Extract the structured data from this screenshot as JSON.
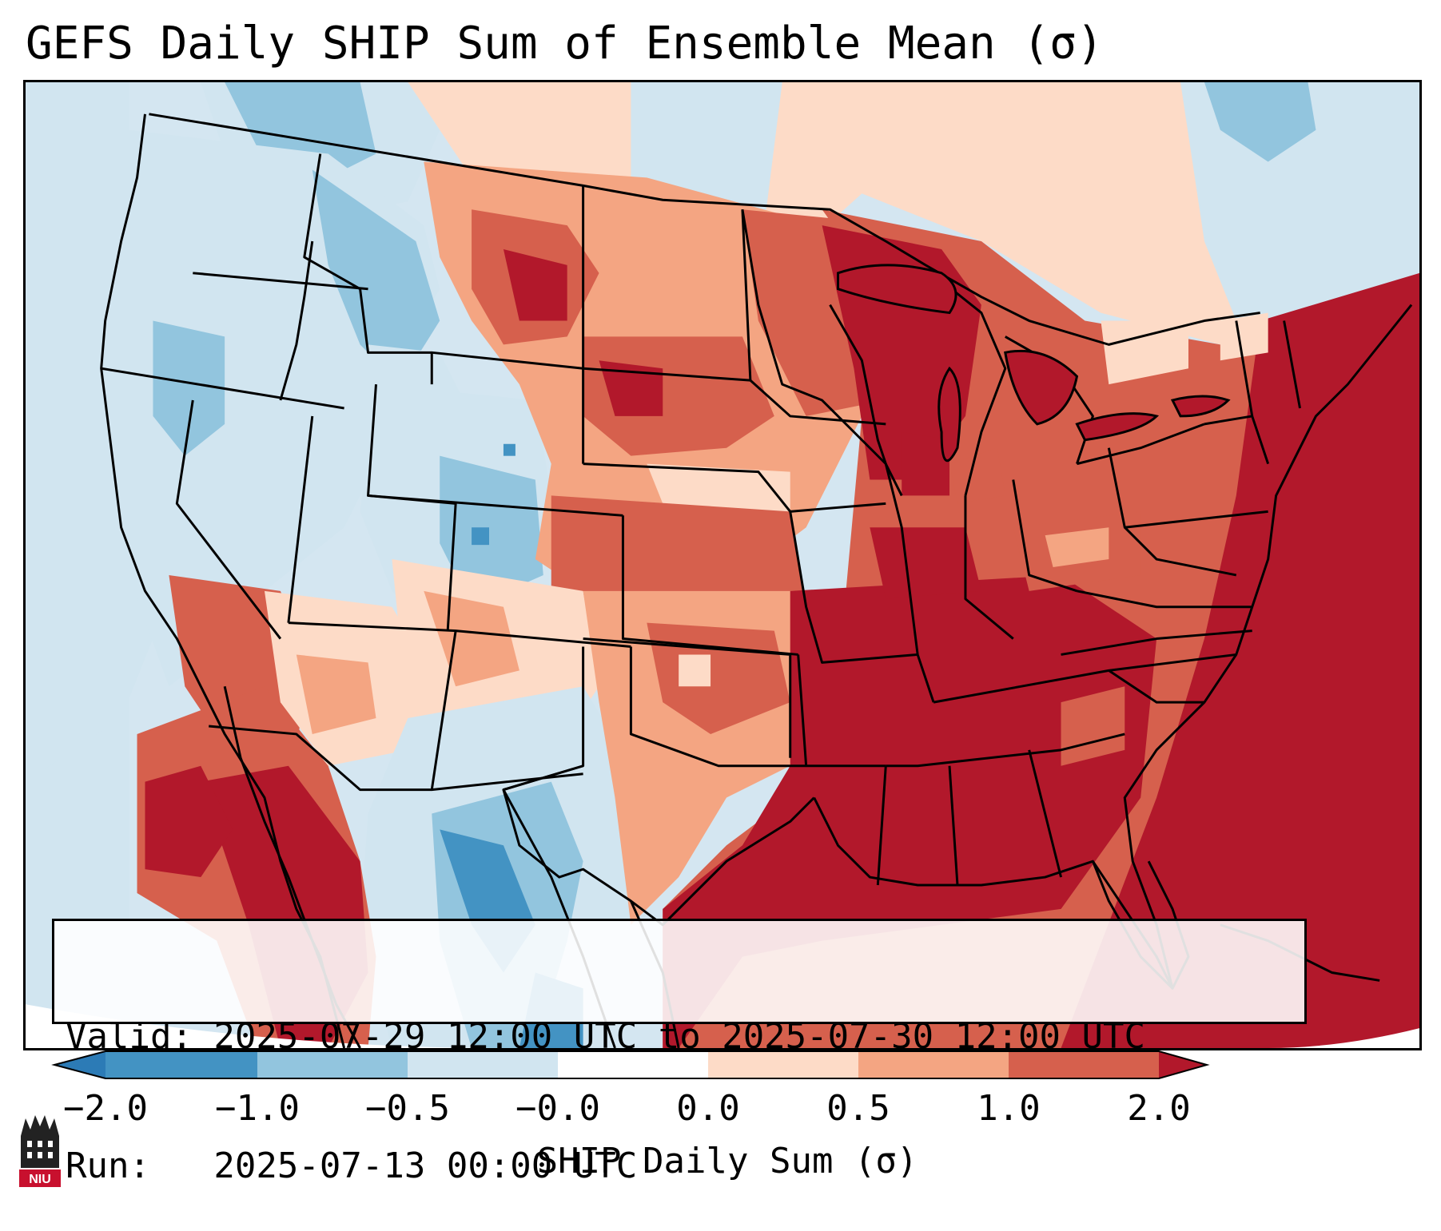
{
  "title": "GEFS Daily SHIP Sum of Ensemble Mean (σ)",
  "info": {
    "valid": "Valid: 2025-07-29 12:00 UTC to 2025-07-30 12:00 UTC",
    "run": "Run:   2025-07-13 00:00 UTC"
  },
  "colorbar": {
    "label": "SHIP Daily Sum (σ)",
    "ticks": [
      "−2.0",
      "−1.0",
      "−0.5",
      "−0.0",
      "0.0",
      "0.5",
      "1.0",
      "2.0"
    ],
    "colors": [
      "#2c7bb6",
      "#4393c3",
      "#92c5de",
      "#d1e5f0",
      "#ffffff",
      "#fddbc7",
      "#f4a582",
      "#d6604d",
      "#b2182b"
    ]
  },
  "logo": {
    "text": "NIU",
    "color": "#c8102e"
  }
}
